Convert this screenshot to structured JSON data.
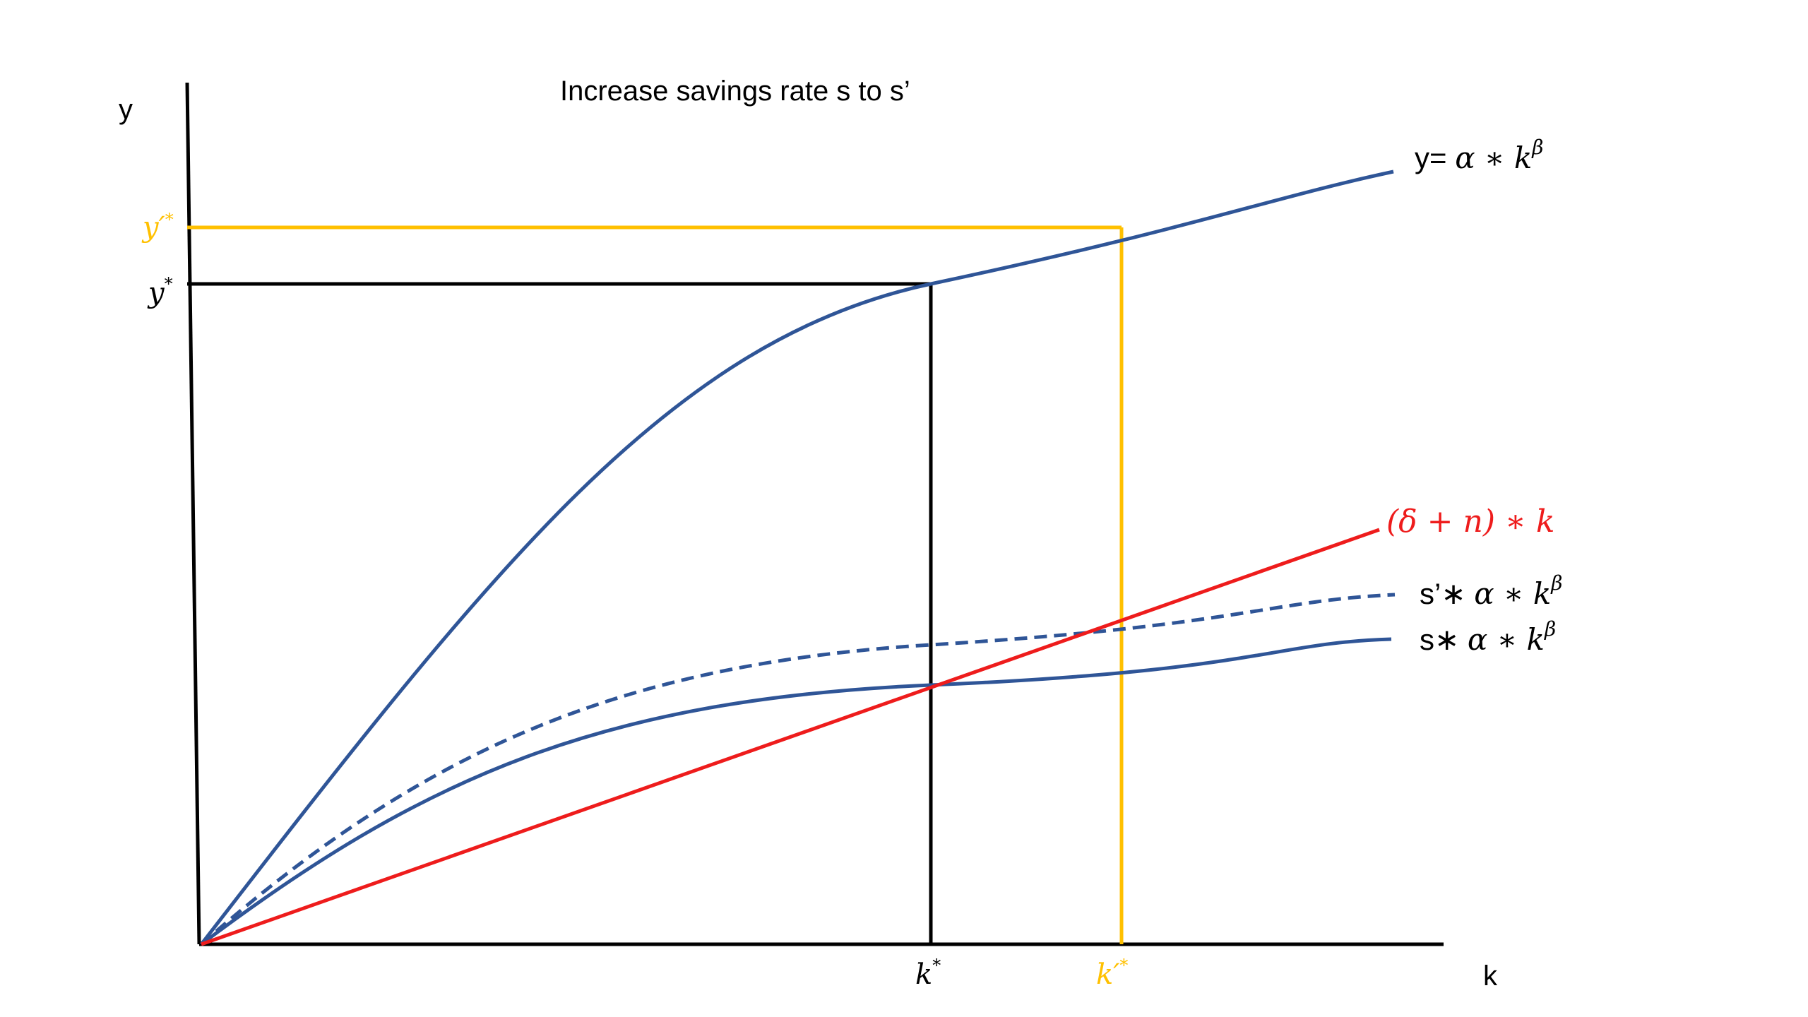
{
  "title": "Increase savings rate s to s’",
  "axes": {
    "y_label": "y",
    "x_label": "k"
  },
  "ticks": {
    "y_star": "y",
    "y_star_sup": "*",
    "y_prime_star": "y′",
    "y_prime_star_sup": "*",
    "k_star": "k",
    "k_star_sup": "*",
    "k_prime_star": "k′",
    "k_prime_star_sup": "*"
  },
  "curve_labels": {
    "production": {
      "prefix": "y= ",
      "body": "α ∗ k",
      "sup": "β"
    },
    "break_even": {
      "text": "(δ + n) ∗ k"
    },
    "new_savings": {
      "prefix": "s’∗ ",
      "body": "α ∗ k",
      "sup": "β"
    },
    "savings": {
      "prefix": "s∗ ",
      "body": "α ∗ k",
      "sup": "β"
    }
  },
  "colors": {
    "production_curve": "#2F5597",
    "savings_curve": "#2F5597",
    "break_even_line": "#EE1C1C",
    "new_steady_state": "#FFC000",
    "old_steady_state": "#000000",
    "axes": "#000000"
  }
}
